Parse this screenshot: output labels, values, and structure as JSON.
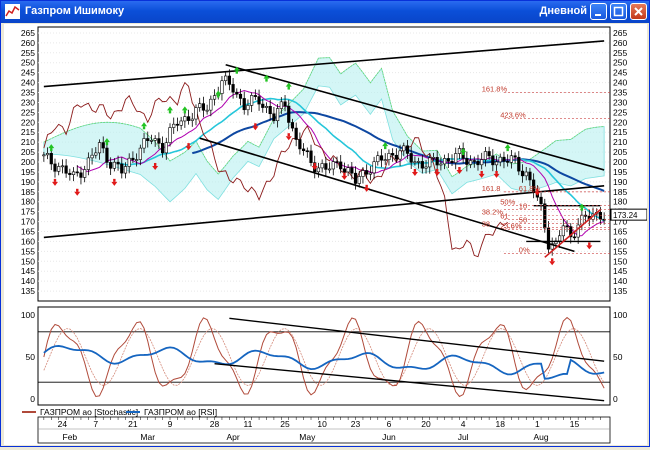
{
  "window": {
    "title": "Газпром Ишимоку",
    "timeframe": "Дневной"
  },
  "colors": {
    "titlebar": "#0b4fd8",
    "price_up": "#ffffff",
    "price_down": "#000000",
    "buy_arrow": "#22c322",
    "sell_arrow": "#e01818",
    "stochastic": "#b04a3a",
    "rsi": "#1565c0",
    "fib_text": "#c0392b",
    "trend": "#000000",
    "support": "#d02020"
  },
  "price_panel": {
    "y_range": [
      130,
      268
    ],
    "y_ticks": [
      "265",
      "260",
      "255",
      "250",
      "245",
      "240",
      "235",
      "230",
      "225",
      "220",
      "215",
      "210",
      "205",
      "200",
      "195",
      "190",
      "185",
      "180",
      "175",
      "170",
      "165",
      "160",
      "155",
      "150",
      "145",
      "140",
      "135"
    ],
    "last_price_label": "173.24",
    "fib_levels": [
      {
        "label": "161.8%",
        "y": 235
      },
      {
        "label": "423.6%",
        "y": 222
      },
      {
        "label": "61.8%",
        "y": 185
      },
      {
        "label": "161.8",
        "y": 185
      },
      {
        "label": "50%",
        "y": 178
      },
      {
        "label": "10",
        "y": 176
      },
      {
        "label": "38.2%",
        "y": 173
      },
      {
        "label": "61",
        "y": 171
      },
      {
        "label": "50",
        "y": 169
      },
      {
        "label": "38",
        "y": 167
      },
      {
        "label": "23.6%",
        "y": 166
      },
      {
        "label": "0%",
        "y": 154
      }
    ]
  },
  "indicator_panel": {
    "y_ticks": [
      "100",
      "50",
      "0"
    ],
    "stochastic_levels": [
      80,
      20
    ],
    "legend": [
      {
        "label": "ГАЗПРОМ ао [Stochastic]",
        "series": "stochastic"
      },
      {
        "label": "ГАЗПРОМ ао [RSI]",
        "series": "rsi"
      }
    ]
  },
  "time_axis": {
    "day_labels": [
      {
        "label": "24",
        "idx": 5
      },
      {
        "label": "7",
        "idx": 14
      },
      {
        "label": "21",
        "idx": 24
      },
      {
        "label": "9",
        "idx": 34
      },
      {
        "label": "28",
        "idx": 46
      },
      {
        "label": "11",
        "idx": 55
      },
      {
        "label": "25",
        "idx": 65
      },
      {
        "label": "10",
        "idx": 75
      },
      {
        "label": "23",
        "idx": 84
      },
      {
        "label": "6",
        "idx": 93
      },
      {
        "label": "20",
        "idx": 103
      },
      {
        "label": "4",
        "idx": 113
      },
      {
        "label": "18",
        "idx": 123
      },
      {
        "label": "1",
        "idx": 133
      },
      {
        "label": "15",
        "idx": 143
      }
    ],
    "month_labels": [
      {
        "label": "Feb",
        "idx": 7
      },
      {
        "label": "Mar",
        "idx": 28
      },
      {
        "label": "Apr",
        "idx": 51
      },
      {
        "label": "May",
        "idx": 71
      },
      {
        "label": "Jun",
        "idx": 93
      },
      {
        "label": "Jul",
        "idx": 113
      },
      {
        "label": "Aug",
        "idx": 134
      }
    ]
  },
  "chart_data": {
    "type": "candlestick",
    "n_bars": 152,
    "close_keyframes": [
      [
        0,
        202
      ],
      [
        4,
        198
      ],
      [
        8,
        192
      ],
      [
        12,
        200
      ],
      [
        15,
        208
      ],
      [
        18,
        200
      ],
      [
        21,
        195
      ],
      [
        25,
        205
      ],
      [
        29,
        212
      ],
      [
        32,
        208
      ],
      [
        36,
        220
      ],
      [
        40,
        224
      ],
      [
        44,
        228
      ],
      [
        48,
        240
      ],
      [
        51,
        238
      ],
      [
        54,
        228
      ],
      [
        58,
        232
      ],
      [
        62,
        222
      ],
      [
        65,
        230
      ],
      [
        68,
        210
      ],
      [
        72,
        200
      ],
      [
        76,
        196
      ],
      [
        80,
        200
      ],
      [
        84,
        190
      ],
      [
        88,
        198
      ],
      [
        92,
        202
      ],
      [
        96,
        206
      ],
      [
        100,
        200
      ],
      [
        104,
        199
      ],
      [
        108,
        201
      ],
      [
        112,
        203
      ],
      [
        116,
        200
      ],
      [
        120,
        202
      ],
      [
        124,
        201
      ],
      [
        127,
        200
      ],
      [
        130,
        194
      ],
      [
        132,
        186
      ],
      [
        134,
        176
      ],
      [
        136,
        160
      ],
      [
        138,
        158
      ],
      [
        140,
        168
      ],
      [
        142,
        162
      ],
      [
        144,
        170
      ],
      [
        147,
        172
      ],
      [
        150,
        174
      ]
    ],
    "trendlines": [
      {
        "name": "channel-upper",
        "p1": [
          0,
          238
        ],
        "p2": [
          151,
          261
        ]
      },
      {
        "name": "channel-lower",
        "p1": [
          0,
          162
        ],
        "p2": [
          151,
          188
        ]
      },
      {
        "name": "down-upper",
        "p1": [
          49,
          249
        ],
        "p2": [
          151,
          196
        ]
      },
      {
        "name": "down-lower",
        "p1": [
          42,
          212
        ],
        "p2": [
          143,
          155
        ]
      }
    ],
    "support_lines": [
      {
        "p1": [
          130,
          160
        ],
        "p2": [
          150,
          160
        ]
      },
      {
        "p1": [
          132,
          178
        ],
        "p2": [
          150,
          178
        ]
      }
    ],
    "red_support": {
      "p1": [
        135,
        152
      ],
      "p2": [
        150,
        176
      ]
    },
    "buy_signals": [
      [
        2,
        207
      ],
      [
        17,
        210
      ],
      [
        27,
        218
      ],
      [
        34,
        226
      ],
      [
        38,
        226
      ],
      [
        47,
        234
      ],
      [
        52,
        246
      ],
      [
        60,
        242
      ],
      [
        66,
        238
      ],
      [
        92,
        208
      ],
      [
        113,
        205
      ],
      [
        125,
        207
      ],
      [
        145,
        177
      ]
    ],
    "sell_signals": [
      [
        3,
        190
      ],
      [
        9,
        185
      ],
      [
        19,
        190
      ],
      [
        30,
        198
      ],
      [
        39,
        208
      ],
      [
        57,
        218
      ],
      [
        66,
        213
      ],
      [
        73,
        198
      ],
      [
        81,
        193
      ],
      [
        87,
        187
      ],
      [
        100,
        195
      ],
      [
        106,
        195
      ],
      [
        112,
        196
      ],
      [
        118,
        194
      ],
      [
        122,
        194
      ],
      [
        133,
        185
      ],
      [
        137,
        150
      ],
      [
        147,
        158
      ]
    ]
  }
}
